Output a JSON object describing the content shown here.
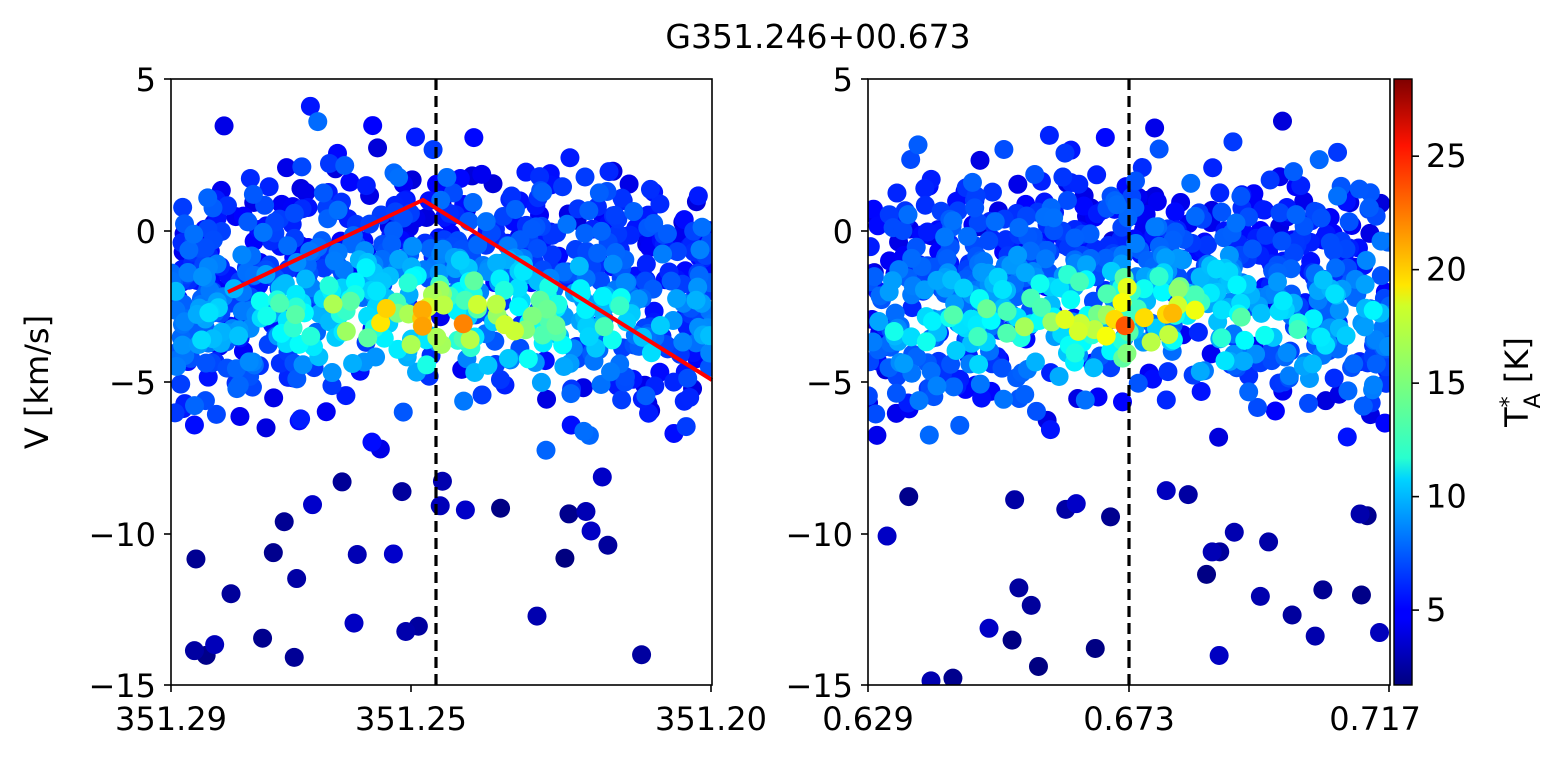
{
  "figure": {
    "title": "G351.246+00.673"
  },
  "chart_data": [
    {
      "type": "scatter",
      "panel": "left",
      "x_axis_reversed": true,
      "xlim": [
        351.29,
        351.2
      ],
      "ylim": [
        -15,
        5
      ],
      "xticks": [
        351.29,
        351.25,
        351.2
      ],
      "xtick_labels": [
        "351.29",
        "351.25",
        "351.20"
      ],
      "yticks": [
        5,
        0,
        -5,
        -10,
        -15
      ],
      "ytick_labels": [
        "5",
        "0",
        "−5",
        "−10",
        "−15"
      ],
      "xlabel": "",
      "ylabel": "V [km/s]",
      "reference_line": {
        "x": 351.246,
        "style": "dashed",
        "color": "#000000"
      },
      "fit_line": {
        "x": [
          351.28,
          351.248,
          351.2
        ],
        "y": [
          -2.0,
          1.0,
          -4.9
        ],
        "color": "#ff0000"
      },
      "color_scale": "jet",
      "point_color_field": "T_A* [K]",
      "points_summary": "dense band of points between about -8 and +2 km/s across the full longitude range, with scattered outliers down to -15 km/s",
      "points": []
    },
    {
      "type": "scatter",
      "panel": "right",
      "x_axis_reversed": false,
      "xlim": [
        0.629,
        0.717
      ],
      "ylim": [
        -15,
        5
      ],
      "xticks": [
        0.629,
        0.673,
        0.717
      ],
      "xtick_labels": [
        "0.629",
        "0.673",
        "0.717"
      ],
      "yticks": [
        5,
        0,
        -5,
        -10,
        -15
      ],
      "ytick_labels": [
        "5",
        "0",
        "−5",
        "−10",
        "−15"
      ],
      "xlabel": "",
      "ylabel": "",
      "reference_line": {
        "x": 0.673,
        "style": "dashed",
        "color": "#000000"
      },
      "color_scale": "jet",
      "point_color_field": "T_A* [K]",
      "points": []
    }
  ],
  "colorbar": {
    "label_main": "T",
    "label_sup": "*",
    "label_sub": "A",
    "label_unit": " [K]",
    "cmap": "jet",
    "vmin": 1.7,
    "vmax": 28.4,
    "ticks": [
      5,
      10,
      15,
      20,
      25
    ],
    "tick_labels": [
      "5",
      "10",
      "15",
      "20",
      "25"
    ]
  },
  "colors": {
    "fit_line": "#ff0000",
    "reference_line": "#000000",
    "axis": "#000000"
  }
}
